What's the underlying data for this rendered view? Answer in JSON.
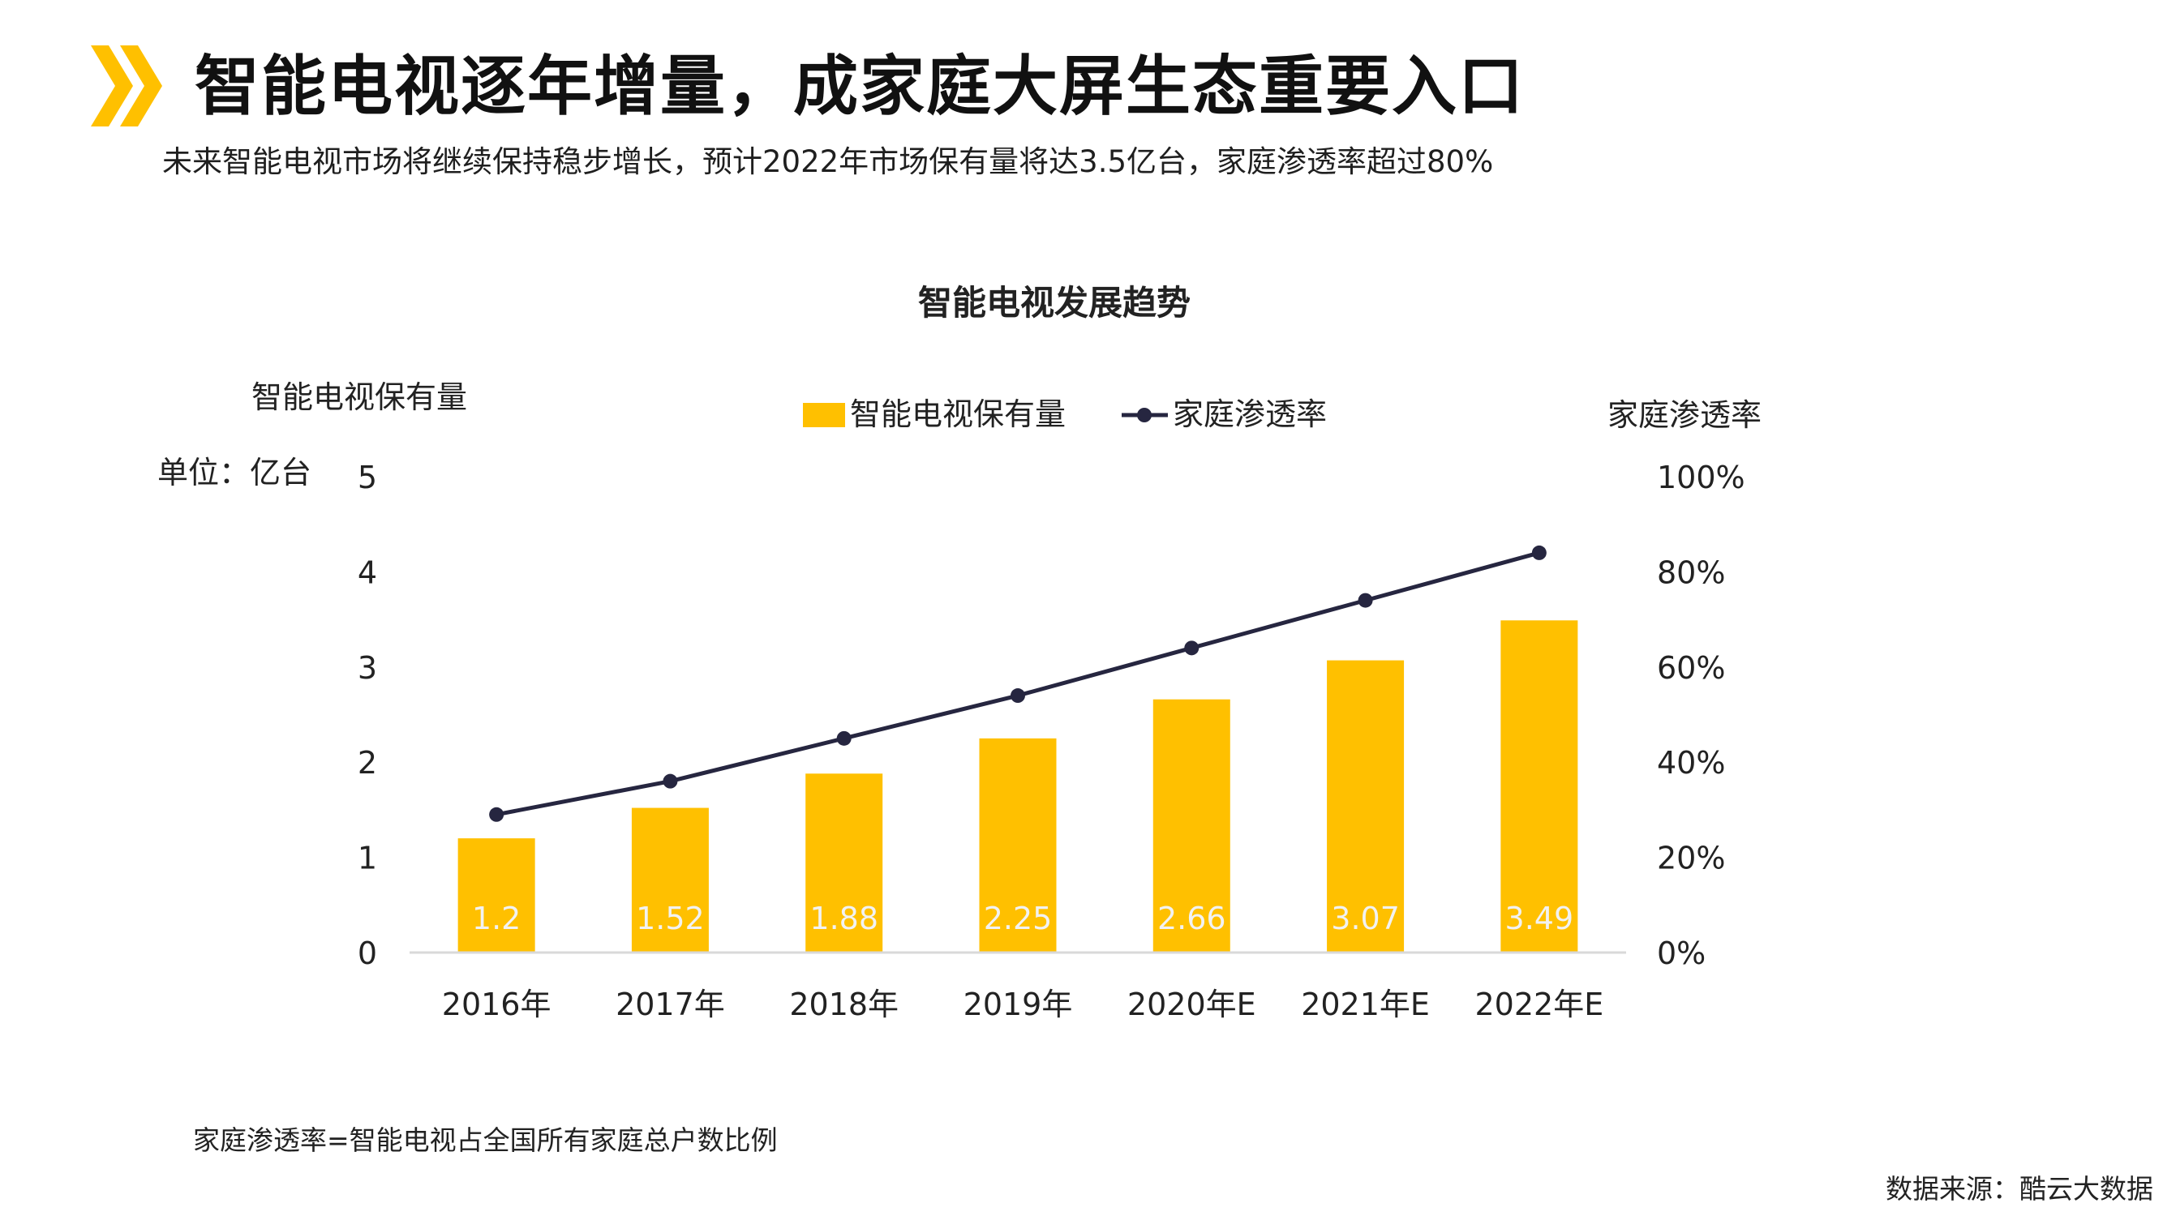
{
  "header": {
    "title": "智能电视逐年增量，成家庭大屏生态重要入口",
    "subtitle": "未来智能电视市场将继续保持稳步增长，预计2022年市场保有量将达3.5亿台，家庭渗透率超过80%"
  },
  "colors": {
    "accent": "#FFC000",
    "line": "#262640",
    "axis": "#D9D9D9",
    "bar_label": "#F2F2F2"
  },
  "chart_data": {
    "type": "bar+line",
    "title": "智能电视发展趋势",
    "left_axis_title": "智能电视保有量",
    "left_axis_unit": "单位：亿台",
    "right_axis_title": "家庭渗透率",
    "categories": [
      "2016年",
      "2017年",
      "2018年",
      "2019年",
      "2020年E",
      "2021年E",
      "2022年E"
    ],
    "left_ylim": [
      0,
      5
    ],
    "left_ticks": [
      "0",
      "1",
      "2",
      "3",
      "4",
      "5"
    ],
    "right_ylim": [
      0,
      100
    ],
    "right_ticks": [
      "0%",
      "20%",
      "40%",
      "60%",
      "80%",
      "100%"
    ],
    "legend_position": "top-center",
    "series": [
      {
        "name": "智能电视保有量",
        "type": "bar",
        "values": [
          1.2,
          1.52,
          1.88,
          2.25,
          2.66,
          3.07,
          3.49
        ],
        "labels": [
          "1.2",
          "1.52",
          "1.88",
          "2.25",
          "2.66",
          "3.07",
          "3.49"
        ]
      },
      {
        "name": "家庭渗透率",
        "type": "line",
        "axis": "right",
        "values": [
          29,
          36,
          45,
          54,
          64,
          74,
          84
        ]
      }
    ]
  },
  "footnote": "家庭渗透率=智能电视占全国所有家庭总户数比例",
  "source": "数据来源：酷云大数据"
}
